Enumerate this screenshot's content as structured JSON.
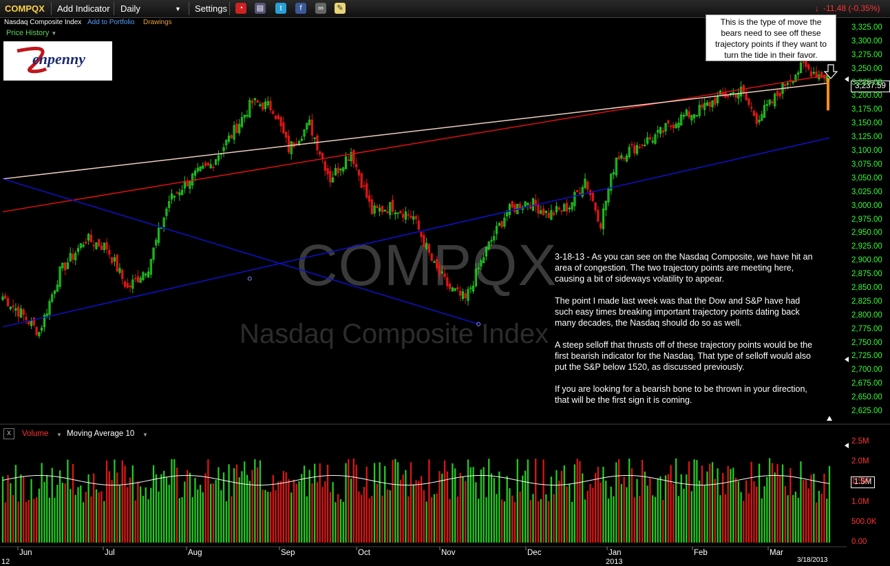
{
  "toolbar": {
    "symbol": "COMPQX",
    "add_indicator": "Add Indicator",
    "interval": "Daily",
    "settings": "Settings",
    "change": "-11.48 (-0.35%)"
  },
  "subheader": {
    "name": "Nasdaq Composite Index",
    "add_portfolio": "Add to Portfolio",
    "drawings": "Drawings"
  },
  "price_history_label": "Price History",
  "logo_text": "Zenpenny",
  "callout": "This is the type of move the bears need to see off these trajectory points if they want to turn the tide in their favor.",
  "note": [
    "3-18-13 - As you can see on the Nasdaq Composite, we have hit an area of congestion. The two trajectory points are meeting here, causing a bit of sideways volatility to appear.",
    "The point I made last week was that the Dow and S&P have had such easy times breaking important trajectory points dating back many decades, the Nasdaq should do so as well.",
    "A steep selloff that thrusts off of these trajectory points would be the first bearish indicator for the Nasdaq. That type of selloff would also put the S&P below 1520, as discussed previously.",
    "If you are looking for a bearish bone to be thrown in your direction, that will be the first sign it is coming."
  ],
  "watermark": {
    "symbol": "COMPQX",
    "name": "Nasdaq Composite Index"
  },
  "volume_panel": {
    "close": "x",
    "label": "Volume",
    "ma_label": "Moving Average 10"
  },
  "current_price": "3,237.59",
  "current_volume": "1.5M",
  "date_stamp": "3/18/2013",
  "year_left": "12",
  "year_2013": "2013",
  "colors": {
    "up": "#22cc22",
    "down": "#e01515",
    "trend_blue": "#1010d0",
    "trend_red": "#e01010",
    "trend_light": "#f0d0c0"
  },
  "chart_data": {
    "type": "candlestick",
    "price_axis": {
      "ticks": [
        "3,325.00",
        "3,300.00",
        "3,275.00",
        "3,250.00",
        "3,225.00",
        "3,200.00",
        "3,175.00",
        "3,150.00",
        "3,125.00",
        "3,100.00",
        "3,075.00",
        "3,050.00",
        "3,025.00",
        "3,000.00",
        "2,975.00",
        "2,950.00",
        "2,925.00",
        "2,900.00",
        "2,875.00",
        "2,850.00",
        "2,825.00",
        "2,800.00",
        "2,775.00",
        "2,750.00",
        "2,725.00",
        "2,700.00",
        "2,675.00",
        "2,650.00",
        "2,625.00"
      ],
      "range": [
        2615,
        3335
      ]
    },
    "volume_axis": {
      "ticks": [
        "2.5M",
        "2.0M",
        "1.5M",
        "1.0M",
        "500.0K",
        "0.00"
      ],
      "range": [
        0,
        2500000
      ]
    },
    "x_labels": [
      "Jun",
      "Jul",
      "Aug",
      "Sep",
      "Oct",
      "Nov",
      "Dec",
      "Jan",
      "Feb",
      "Mar"
    ],
    "anchors": [
      [
        0,
        2835
      ],
      [
        8,
        2800
      ],
      [
        14,
        2770
      ],
      [
        22,
        2880
      ],
      [
        32,
        2940
      ],
      [
        40,
        2925
      ],
      [
        48,
        2850
      ],
      [
        56,
        2890
      ],
      [
        64,
        3010
      ],
      [
        72,
        3050
      ],
      [
        80,
        3075
      ],
      [
        88,
        3130
      ],
      [
        96,
        3190
      ],
      [
        104,
        3180
      ],
      [
        110,
        3105
      ],
      [
        118,
        3150
      ],
      [
        126,
        3050
      ],
      [
        134,
        3100
      ],
      [
        142,
        2990
      ],
      [
        150,
        3000
      ],
      [
        158,
        2980
      ],
      [
        166,
        2890
      ],
      [
        172,
        2850
      ],
      [
        178,
        2830
      ],
      [
        186,
        2920
      ],
      [
        194,
        2990
      ],
      [
        202,
        3010
      ],
      [
        210,
        2985
      ],
      [
        218,
        3000
      ],
      [
        224,
        3050
      ],
      [
        230,
        2970
      ],
      [
        236,
        3090
      ],
      [
        244,
        3110
      ],
      [
        252,
        3130
      ],
      [
        260,
        3160
      ],
      [
        268,
        3175
      ],
      [
        276,
        3200
      ],
      [
        284,
        3210
      ],
      [
        290,
        3160
      ],
      [
        296,
        3190
      ],
      [
        302,
        3230
      ],
      [
        308,
        3255
      ],
      [
        314,
        3240
      ],
      [
        318,
        3237.59
      ]
    ],
    "trend_lines": [
      {
        "name": "lower trajectory",
        "color": "blue",
        "from": [
          0,
          2780
        ],
        "to": [
          318,
          3125
        ]
      },
      {
        "name": "upper trajectory",
        "color": "red",
        "from": [
          0,
          2990
        ],
        "to": [
          318,
          3240
        ]
      },
      {
        "name": "long-term trajectory",
        "color": "light",
        "from": [
          0,
          3050
        ],
        "to": [
          318,
          3225
        ]
      },
      {
        "name": "down trajectory",
        "color": "blue",
        "from": [
          0,
          3050
        ],
        "to": [
          183,
          2785
        ]
      }
    ]
  }
}
